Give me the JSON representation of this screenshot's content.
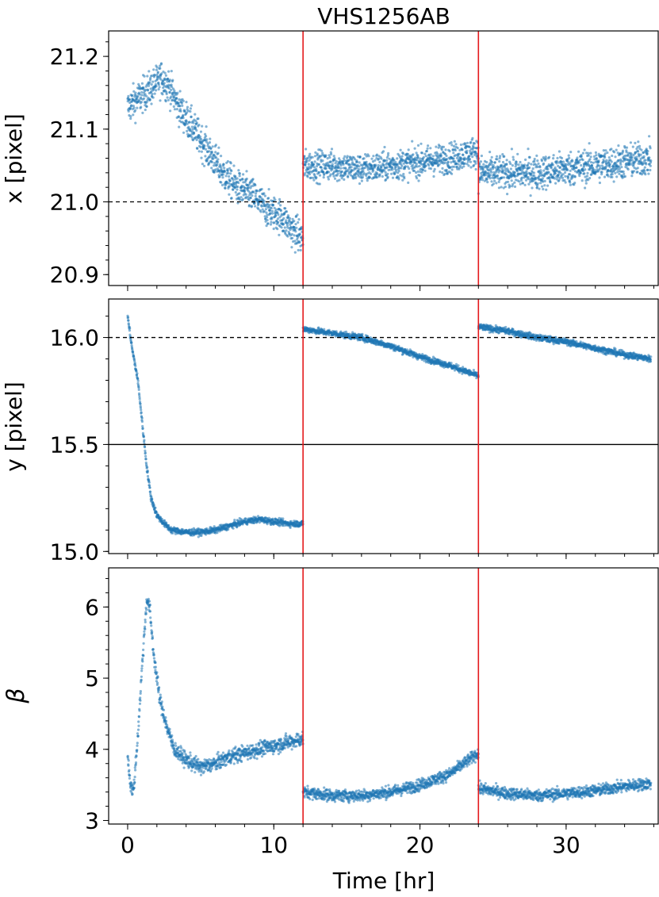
{
  "chart_data": [
    {
      "type": "scatter",
      "panel": "top",
      "title": "VHS1256AB",
      "ylabel": "x [pixel]",
      "xlim": [
        -1.3,
        36.3
      ],
      "ylim": [
        20.885,
        21.235
      ],
      "yticks": [
        20.9,
        21.0,
        21.1,
        21.2
      ],
      "ytick_labels": [
        "20.9",
        "21.0",
        "21.1",
        "21.2"
      ],
      "hlines": [
        {
          "y": 21.0,
          "style": "dashed"
        }
      ],
      "vlines": [
        12,
        24
      ],
      "series": [
        {
          "color": "#1f77b4",
          "segments": [
            {
              "x": [
                0.0,
                0.6,
                1.2,
                1.8,
                2.3,
                2.8,
                3.5,
                4.5,
                5.5,
                6.5,
                7.5,
                8.5,
                9.5,
                10.5,
                11.3,
                12.0
              ],
              "y": [
                21.13,
                21.14,
                21.15,
                21.16,
                21.17,
                21.16,
                21.13,
                21.1,
                21.07,
                21.04,
                21.02,
                21.01,
                20.99,
                20.98,
                20.96,
                20.95
              ],
              "spread": 0.04
            },
            {
              "x": [
                12.0,
                14.0,
                16.0,
                18.0,
                20.0,
                22.0,
                24.0
              ],
              "y": [
                21.05,
                21.05,
                21.045,
                21.05,
                21.055,
                21.06,
                21.07
              ],
              "spread": 0.035
            },
            {
              "x": [
                24.0,
                26.0,
                28.0,
                30.0,
                32.0,
                34.0,
                35.8
              ],
              "y": [
                21.04,
                21.04,
                21.04,
                21.045,
                21.05,
                21.055,
                21.06
              ],
              "spread": 0.04
            }
          ]
        }
      ]
    },
    {
      "type": "scatter",
      "panel": "middle",
      "ylabel": "y [pixel]",
      "xlim": [
        -1.3,
        36.3
      ],
      "ylim": [
        14.99,
        16.18
      ],
      "yticks": [
        15.0,
        15.5,
        16.0
      ],
      "ytick_labels": [
        "15.0",
        "15.5",
        "16.0"
      ],
      "hlines": [
        {
          "y": 16.0,
          "style": "dashed"
        },
        {
          "y": 15.5,
          "style": "solid"
        }
      ],
      "vlines": [
        12,
        24
      ],
      "series": [
        {
          "color": "#1f77b4",
          "segments": [
            {
              "x": [
                0.0,
                0.3,
                0.7,
                1.0,
                1.3,
                1.6,
                2.0,
                2.5,
                3.0,
                4.0,
                5.0,
                6.0,
                7.0,
                8.0,
                9.0,
                10.0,
                11.0,
                12.0
              ],
              "y": [
                16.1,
                15.95,
                15.8,
                15.6,
                15.4,
                15.25,
                15.17,
                15.13,
                15.1,
                15.09,
                15.09,
                15.1,
                15.12,
                15.14,
                15.15,
                15.14,
                15.13,
                15.13
              ],
              "spread": 0.025
            },
            {
              "x": [
                12.0,
                14.0,
                16.0,
                18.0,
                20.0,
                22.0,
                24.0
              ],
              "y": [
                16.04,
                16.02,
                16.0,
                15.96,
                15.91,
                15.87,
                15.82
              ],
              "spread": 0.025
            },
            {
              "x": [
                24.0,
                26.0,
                28.0,
                30.0,
                32.0,
                34.0,
                35.8
              ],
              "y": [
                16.05,
                16.03,
                16.0,
                15.98,
                15.95,
                15.92,
                15.9
              ],
              "spread": 0.025
            }
          ]
        }
      ]
    },
    {
      "type": "scatter",
      "panel": "bottom",
      "ylabel": "β",
      "xlabel": "Time [hr]",
      "xlim": [
        -1.3,
        36.3
      ],
      "ylim": [
        2.95,
        6.55
      ],
      "yticks": [
        3,
        4,
        5,
        6
      ],
      "ytick_labels": [
        "3",
        "4",
        "5",
        "6"
      ],
      "xticks": [
        0,
        10,
        20,
        30
      ],
      "xtick_labels": [
        "0",
        "10",
        "20",
        "30"
      ],
      "vlines": [
        12,
        24
      ],
      "series": [
        {
          "color": "#1f77b4",
          "segments": [
            {
              "x": [
                0.0,
                0.2,
                0.4,
                0.7,
                1.0,
                1.3,
                1.5,
                1.8,
                2.2,
                2.7,
                3.2,
                4.0,
                5.0,
                6.0,
                7.0,
                8.0,
                9.0,
                10.0,
                11.0,
                12.0
              ],
              "y": [
                3.9,
                3.5,
                3.4,
                4.2,
                5.2,
                6.1,
                6.0,
                5.3,
                4.7,
                4.3,
                4.0,
                3.85,
                3.75,
                3.8,
                3.9,
                3.95,
                4.0,
                4.05,
                4.1,
                4.15
              ],
              "spread": 0.18
            },
            {
              "x": [
                12.0,
                14.0,
                16.0,
                18.0,
                20.0,
                22.0,
                24.0
              ],
              "y": [
                3.4,
                3.35,
                3.35,
                3.4,
                3.5,
                3.65,
                3.95
              ],
              "spread": 0.14
            },
            {
              "x": [
                24.0,
                26.0,
                28.0,
                30.0,
                32.0,
                34.0,
                35.8
              ],
              "y": [
                3.45,
                3.38,
                3.35,
                3.38,
                3.42,
                3.48,
                3.52
              ],
              "spread": 0.14
            }
          ]
        }
      ]
    }
  ]
}
